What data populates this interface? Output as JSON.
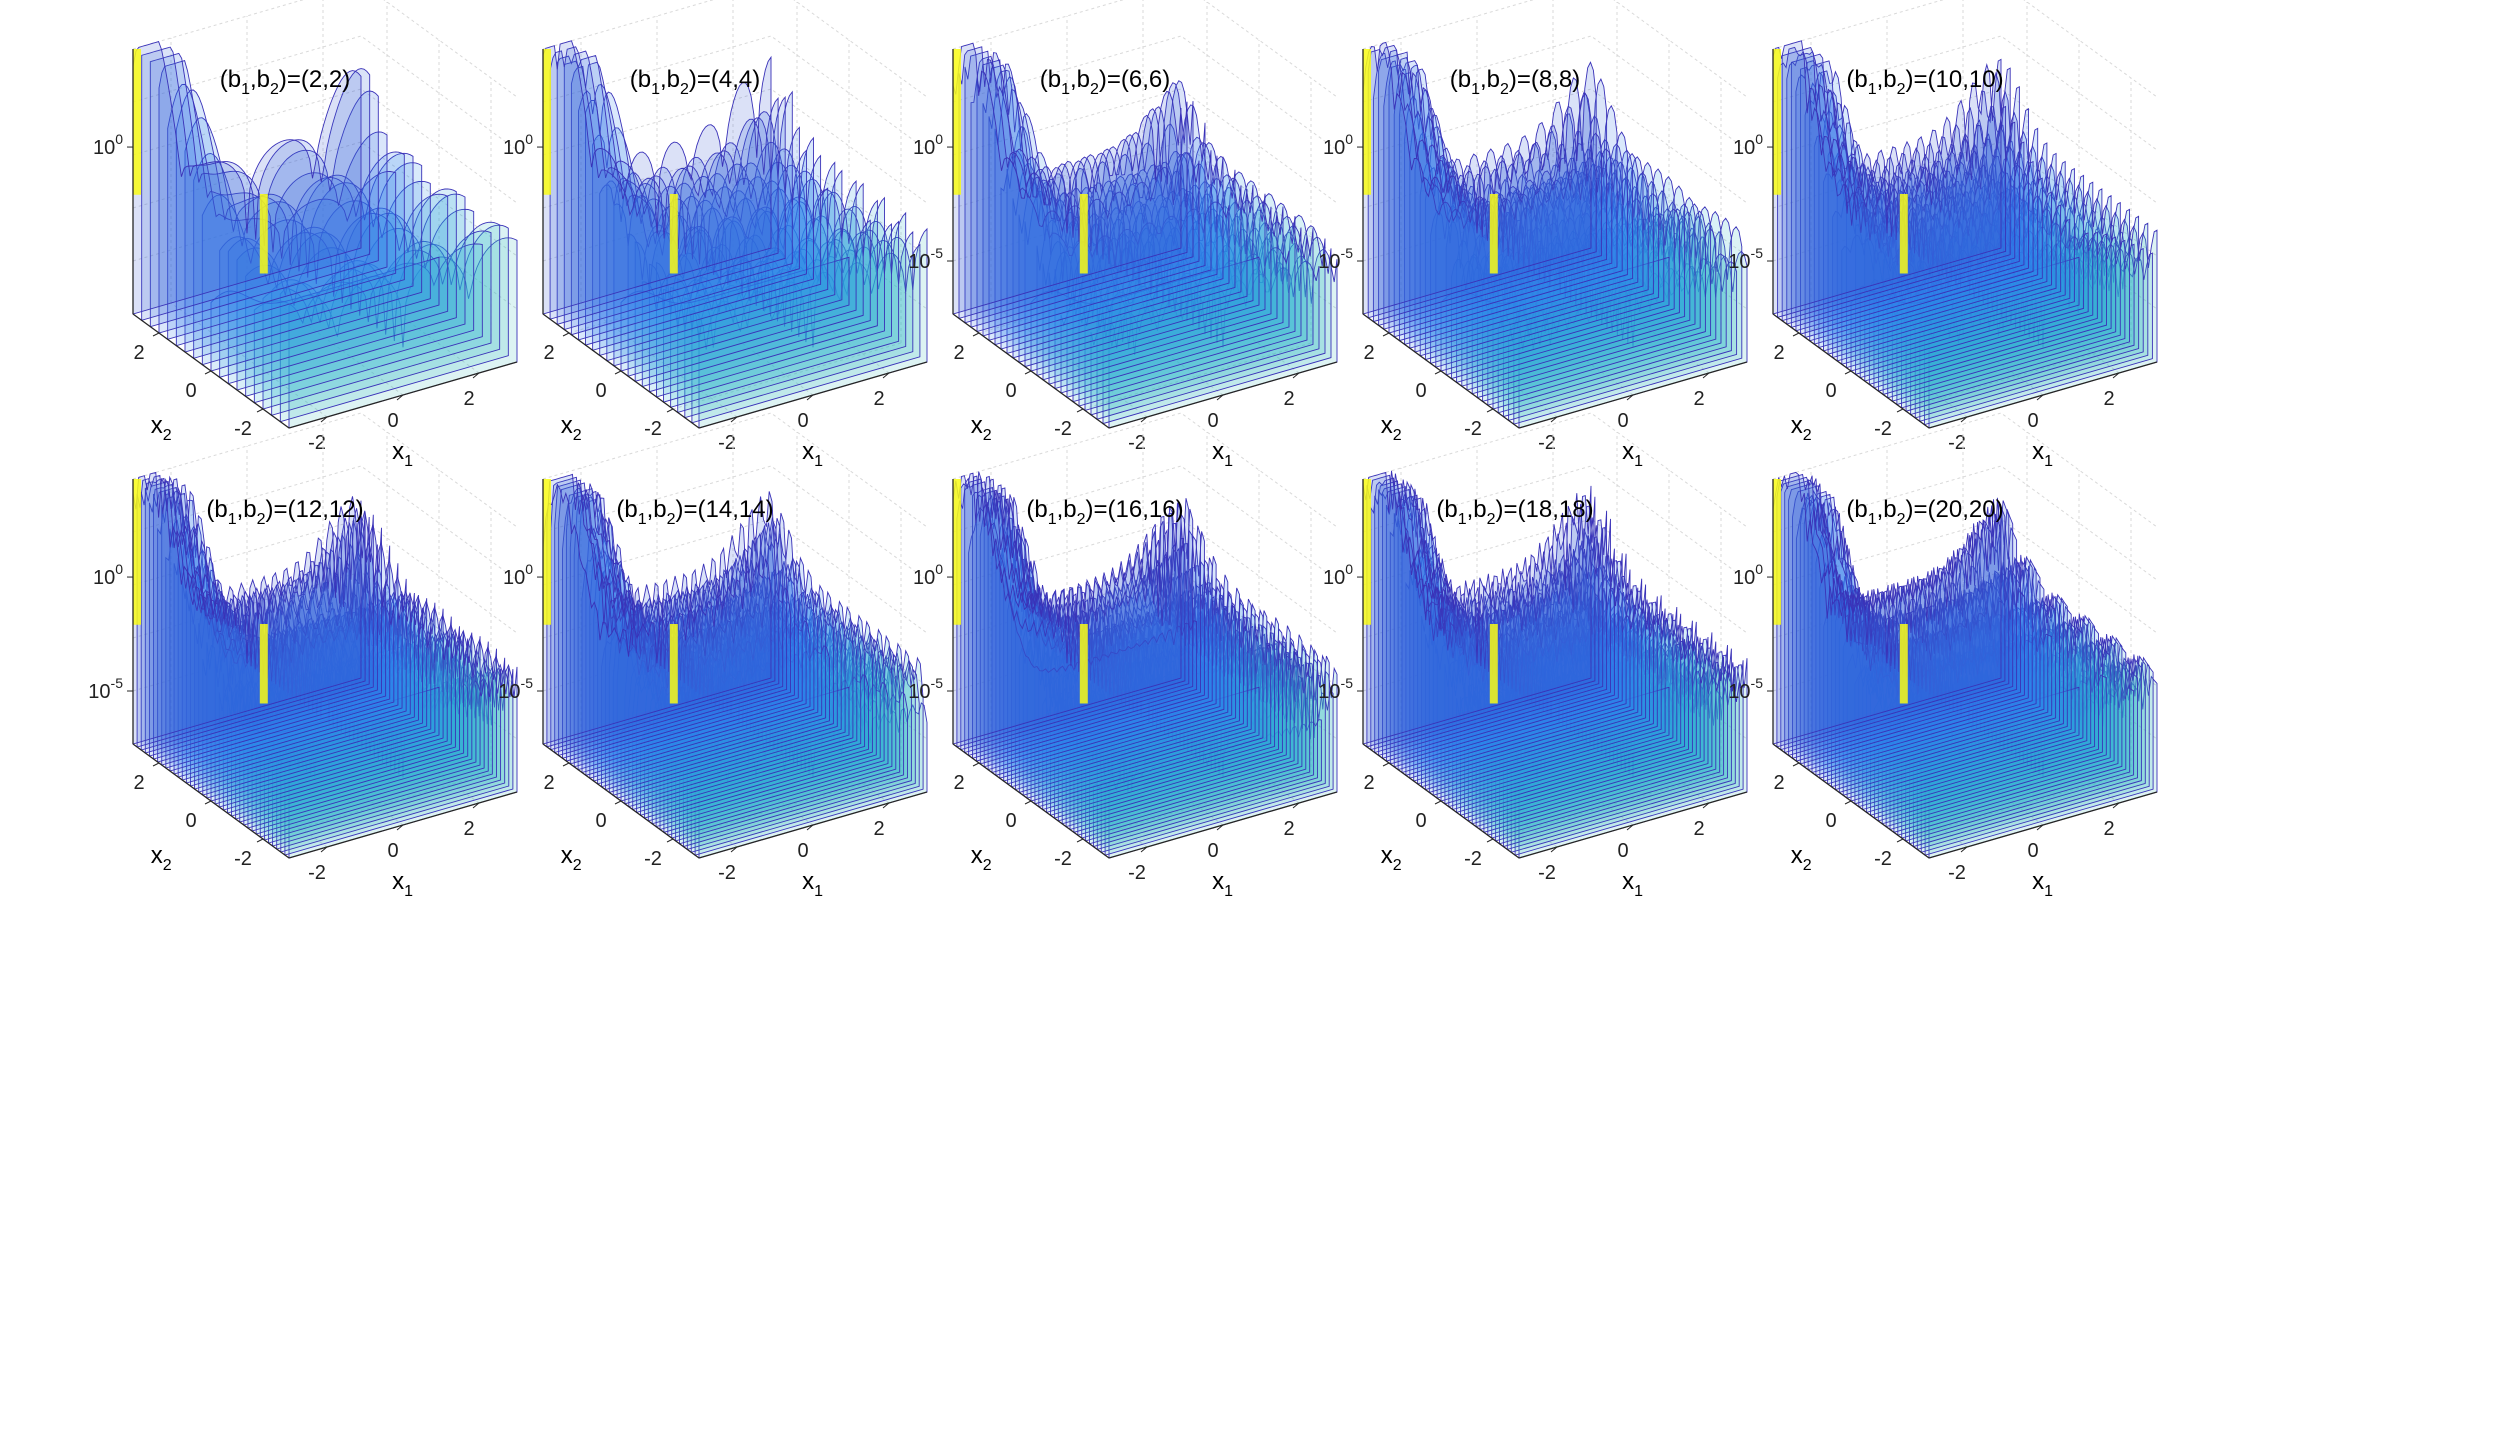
{
  "chart_data": [
    {
      "type": "surface",
      "title": {
        "pre": "(b",
        "s1": "1",
        "mid": ",b",
        "s2": "2",
        "post": ")=(2,2)"
      },
      "b": [
        2,
        2
      ],
      "xlabel": {
        "base": "x",
        "sub": "1"
      },
      "ylabel": {
        "base": "x",
        "sub": "2"
      },
      "x_ticks": [
        "-2",
        "0",
        "2"
      ],
      "y_ticks": [
        "-2",
        "0",
        "2"
      ],
      "z_ticks": [
        {
          "base": "10",
          "exp": "0"
        }
      ],
      "zscale": "log",
      "grid": true
    },
    {
      "type": "surface",
      "title": {
        "pre": "(b",
        "s1": "1",
        "mid": ",b",
        "s2": "2",
        "post": ")=(4,4)"
      },
      "b": [
        4,
        4
      ],
      "xlabel": {
        "base": "x",
        "sub": "1"
      },
      "ylabel": {
        "base": "x",
        "sub": "2"
      },
      "x_ticks": [
        "-2",
        "0",
        "2"
      ],
      "y_ticks": [
        "-2",
        "0",
        "2"
      ],
      "z_ticks": [
        {
          "base": "10",
          "exp": "0"
        }
      ],
      "zscale": "log",
      "grid": true
    },
    {
      "type": "surface",
      "title": {
        "pre": "(b",
        "s1": "1",
        "mid": ",b",
        "s2": "2",
        "post": ")=(6,6)"
      },
      "b": [
        6,
        6
      ],
      "xlabel": {
        "base": "x",
        "sub": "1"
      },
      "ylabel": {
        "base": "x",
        "sub": "2"
      },
      "x_ticks": [
        "-2",
        "0",
        "2"
      ],
      "y_ticks": [
        "-2",
        "0",
        "2"
      ],
      "z_ticks": [
        {
          "base": "10",
          "exp": "0"
        },
        {
          "base": "10",
          "exp": "-5"
        }
      ],
      "zscale": "log",
      "grid": true
    },
    {
      "type": "surface",
      "title": {
        "pre": "(b",
        "s1": "1",
        "mid": ",b",
        "s2": "2",
        "post": ")=(8,8)"
      },
      "b": [
        8,
        8
      ],
      "xlabel": {
        "base": "x",
        "sub": "1"
      },
      "ylabel": {
        "base": "x",
        "sub": "2"
      },
      "x_ticks": [
        "-2",
        "0",
        "2"
      ],
      "y_ticks": [
        "-2",
        "0",
        "2"
      ],
      "z_ticks": [
        {
          "base": "10",
          "exp": "0"
        },
        {
          "base": "10",
          "exp": "-5"
        }
      ],
      "zscale": "log",
      "grid": true
    },
    {
      "type": "surface",
      "title": {
        "pre": "(b",
        "s1": "1",
        "mid": ",b",
        "s2": "2",
        "post": ")=(10,10)"
      },
      "b": [
        10,
        10
      ],
      "xlabel": {
        "base": "x",
        "sub": "1"
      },
      "ylabel": {
        "base": "x",
        "sub": "2"
      },
      "x_ticks": [
        "-2",
        "0",
        "2"
      ],
      "y_ticks": [
        "-2",
        "0",
        "2"
      ],
      "z_ticks": [
        {
          "base": "10",
          "exp": "0"
        },
        {
          "base": "10",
          "exp": "-5"
        }
      ],
      "zscale": "log",
      "grid": true
    },
    {
      "type": "surface",
      "title": {
        "pre": "(b",
        "s1": "1",
        "mid": ",b",
        "s2": "2",
        "post": ")=(12,12)"
      },
      "b": [
        12,
        12
      ],
      "xlabel": {
        "base": "x",
        "sub": "1"
      },
      "ylabel": {
        "base": "x",
        "sub": "2"
      },
      "x_ticks": [
        "-2",
        "0",
        "2"
      ],
      "y_ticks": [
        "-2",
        "0",
        "2"
      ],
      "z_ticks": [
        {
          "base": "10",
          "exp": "0"
        },
        {
          "base": "10",
          "exp": "-5"
        }
      ],
      "zscale": "log",
      "grid": true
    },
    {
      "type": "surface",
      "title": {
        "pre": "(b",
        "s1": "1",
        "mid": ",b",
        "s2": "2",
        "post": ")=(14,14)"
      },
      "b": [
        14,
        14
      ],
      "xlabel": {
        "base": "x",
        "sub": "1"
      },
      "ylabel": {
        "base": "x",
        "sub": "2"
      },
      "x_ticks": [
        "-2",
        "0",
        "2"
      ],
      "y_ticks": [
        "-2",
        "0",
        "2"
      ],
      "z_ticks": [
        {
          "base": "10",
          "exp": "0"
        },
        {
          "base": "10",
          "exp": "-5"
        }
      ],
      "zscale": "log",
      "grid": true
    },
    {
      "type": "surface",
      "title": {
        "pre": "(b",
        "s1": "1",
        "mid": ",b",
        "s2": "2",
        "post": ")=(16,16)"
      },
      "b": [
        16,
        16
      ],
      "xlabel": {
        "base": "x",
        "sub": "1"
      },
      "ylabel": {
        "base": "x",
        "sub": "2"
      },
      "x_ticks": [
        "-2",
        "0",
        "2"
      ],
      "y_ticks": [
        "-2",
        "0",
        "2"
      ],
      "z_ticks": [
        {
          "base": "10",
          "exp": "0"
        },
        {
          "base": "10",
          "exp": "-5"
        }
      ],
      "zscale": "log",
      "grid": true
    },
    {
      "type": "surface",
      "title": {
        "pre": "(b",
        "s1": "1",
        "mid": ",b",
        "s2": "2",
        "post": ")=(18,18)"
      },
      "b": [
        18,
        18
      ],
      "xlabel": {
        "base": "x",
        "sub": "1"
      },
      "ylabel": {
        "base": "x",
        "sub": "2"
      },
      "x_ticks": [
        "-2",
        "0",
        "2"
      ],
      "y_ticks": [
        "-2",
        "0",
        "2"
      ],
      "z_ticks": [
        {
          "base": "10",
          "exp": "0"
        },
        {
          "base": "10",
          "exp": "-5"
        }
      ],
      "zscale": "log",
      "grid": true
    },
    {
      "type": "surface",
      "title": {
        "pre": "(b",
        "s1": "1",
        "mid": ",b",
        "s2": "2",
        "post": ")=(20,20)"
      },
      "b": [
        20,
        20
      ],
      "xlabel": {
        "base": "x",
        "sub": "1"
      },
      "ylabel": {
        "base": "x",
        "sub": "2"
      },
      "x_ticks": [
        "-2",
        "0",
        "2"
      ],
      "y_ticks": [
        "-2",
        "0",
        "2"
      ],
      "z_ticks": [
        {
          "base": "10",
          "exp": "0"
        },
        {
          "base": "10",
          "exp": "-5"
        }
      ],
      "zscale": "log",
      "grid": true
    }
  ],
  "colors": {
    "mesh_line": "#3a32b8",
    "colormap": [
      "#3e26a8",
      "#2f7ef0",
      "#2ab6d0",
      "#7ccf8c",
      "#f9fb15"
    ],
    "grid": "#d9d9d9",
    "axis": "#262626",
    "background": "#ffffff"
  }
}
